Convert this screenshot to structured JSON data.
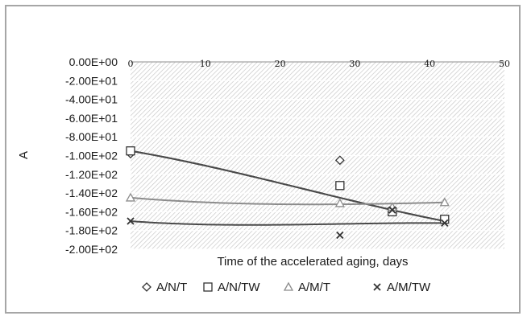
{
  "chart_data": {
    "type": "scatter",
    "xlabel": "Time of the accelerated aging, days",
    "ylabel": "A",
    "xlim": [
      0,
      50
    ],
    "ylim": [
      -200,
      0
    ],
    "x_ticks": [
      "0",
      "10",
      "20",
      "30",
      "40",
      "50"
    ],
    "y_ticks": [
      "0.00E+00",
      "-2.00E+01",
      "-4.00E+01",
      "-6.00E+01",
      "-8.00E+01",
      "-1.00E+02",
      "-1.20E+02",
      "-1.40E+02",
      "-1.60E+02",
      "-1.80E+02",
      "-2.00E+02"
    ],
    "legend_position": "bottom",
    "plot_background": "diagonal hatch",
    "series": [
      {
        "name": "A/N/T",
        "marker": "diamond",
        "color": "#333333",
        "x": [
          0,
          28,
          35,
          42
        ],
        "y": [
          -98,
          -105,
          -160,
          -168
        ],
        "trend": {
          "type": "polynomial",
          "y": [
            -95,
            -118,
            -145,
            -170
          ],
          "color": "#4a4a4a"
        }
      },
      {
        "name": "A/N/TW",
        "marker": "square",
        "color": "#333333",
        "x": [
          0,
          28,
          35,
          42
        ],
        "y": [
          -95,
          -132,
          -160,
          -168
        ],
        "trend": {
          "type": "polynomial",
          "y": [
            -95,
            -118,
            -145,
            -170
          ],
          "color": "#4a4a4a"
        }
      },
      {
        "name": "A/M/T",
        "marker": "triangle",
        "color": "#8c8c8c",
        "x": [
          0,
          28,
          35,
          42
        ],
        "y": [
          -145,
          -151,
          -155,
          -150
        ],
        "trend": {
          "type": "polynomial",
          "y": [
            -145,
            -151,
            -152,
            -150
          ],
          "color": "#8c8c8c"
        }
      },
      {
        "name": "A/M/TW",
        "marker": "x",
        "color": "#333333",
        "x": [
          0,
          28,
          35,
          42
        ],
        "y": [
          -170,
          -185,
          -158,
          -172
        ],
        "trend": {
          "type": "polynomial",
          "y": [
            -170,
            -174,
            -173,
            -172
          ],
          "color": "#4a4a4a"
        }
      }
    ],
    "trend_sample_x": [
      0,
      14,
      28,
      42
    ]
  }
}
